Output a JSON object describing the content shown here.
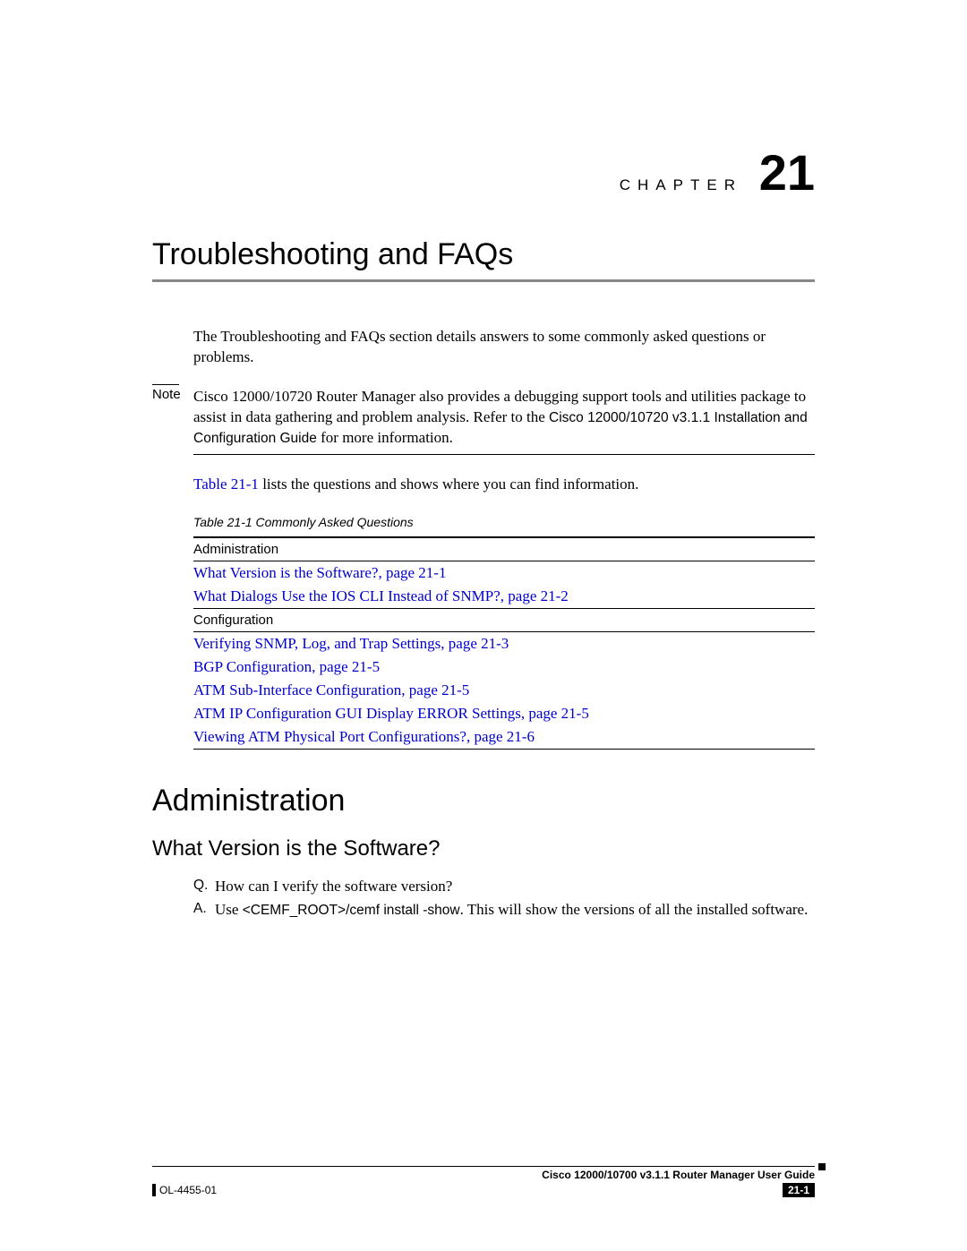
{
  "chapter": {
    "label": "CHAPTER",
    "number": "21",
    "title": "Troubleshooting and FAQs"
  },
  "intro": "The Troubleshooting and FAQs section details answers to some commonly asked questions or problems.",
  "note": {
    "label": "Note",
    "part1": "Cisco 12000/10720 Router Manager also provides a debugging support tools and utilities package to assist in data gathering and problem analysis. Refer to the ",
    "bold1": "Cisco 12000/10720 v3.1.1 Installation and Configuration Guide",
    "part2": " for more information."
  },
  "table_intro_link": "Table 21-1",
  "table_intro_rest": " lists the questions and shows where you can find information.",
  "table_caption": "Table 21-1   Commonly Asked Questions",
  "table": {
    "section1": "Administration",
    "rows1": [
      "What Version is the Software?, page 21-1",
      "What Dialogs Use the IOS CLI Instead of SNMP?, page 21-2"
    ],
    "section2": "Configuration",
    "rows2": [
      "Verifying SNMP, Log, and Trap Settings, page 21-3",
      "BGP Configuration, page 21-5",
      "ATM Sub-Interface Configuration, page 21-5",
      "ATM IP Configuration GUI Display ERROR Settings, page 21-5",
      "Viewing ATM Physical Port Configurations?, page 21-6"
    ]
  },
  "section_heading": "Administration",
  "subsection_heading": "What Version is the Software?",
  "qa": {
    "q_tag": "Q.",
    "q_text": "How can I verify the software version?",
    "a_tag": "A.",
    "a_pre": "Use ",
    "a_cmd": "<CEMF_ROOT>/cemf install -show",
    "a_post": ". This will show the versions of all the installed software."
  },
  "footer": {
    "guide": "Cisco 12000/10700 v3.1.1 Router Manager User Guide",
    "docnum": "OL-4455-01",
    "page": "21-1"
  }
}
